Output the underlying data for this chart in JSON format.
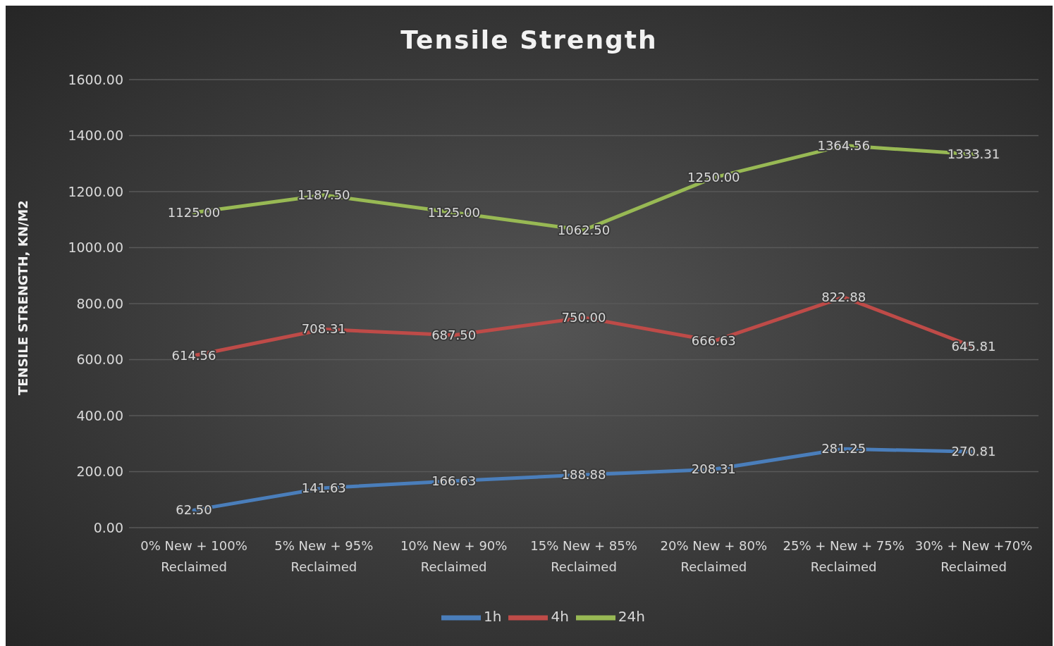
{
  "chart_data": {
    "type": "line",
    "title": "Tensile Strength",
    "ylabel": "TENSILE STRENGTH, KN/M2",
    "categories": [
      "0% New + 100% Reclaimed",
      "5% New + 95% Reclaimed",
      "10% New + 90% Reclaimed",
      "15% New + 85% Reclaimed",
      "20% New + 80% Reclaimed",
      "25% + New + 75% Reclaimed",
      "30% + New +70% Reclaimed"
    ],
    "series": [
      {
        "name": "1h",
        "color": "#4a7ebb",
        "values": [
          62.5,
          141.63,
          166.63,
          188.88,
          208.31,
          281.25,
          270.81
        ],
        "value_labels": [
          "62.50",
          "141.63",
          "166.63",
          "188.88",
          "208.31",
          "281.25",
          "270.81"
        ]
      },
      {
        "name": "4h",
        "color": "#be4b48",
        "values": [
          614.56,
          708.31,
          687.5,
          750,
          666.63,
          822.88,
          645.81
        ],
        "value_labels": [
          "614.56",
          "708.31",
          "687.50",
          "750.00",
          "666.63",
          "822.88",
          "645.81"
        ]
      },
      {
        "name": "24h",
        "color": "#98b954",
        "values": [
          1125,
          1187.5,
          1125,
          1062.5,
          1250,
          1364.56,
          1333.31
        ],
        "value_labels": [
          "1125.00",
          "1187.50",
          "1125.00",
          "1062.50",
          "1250.00",
          "1364.56",
          "1333.31"
        ]
      }
    ],
    "ylim": [
      0,
      1600
    ],
    "yticks": [
      {
        "value": 0,
        "label": "0.00"
      },
      {
        "value": 200,
        "label": "200.00"
      },
      {
        "value": 400,
        "label": "400.00"
      },
      {
        "value": 600,
        "label": "600.00"
      },
      {
        "value": 800,
        "label": "800.00"
      },
      {
        "value": 1000,
        "label": "1000.00"
      },
      {
        "value": 1200,
        "label": "1200.00"
      },
      {
        "value": 1400,
        "label": "1400.00"
      },
      {
        "value": 1600,
        "label": "1600.00"
      }
    ],
    "grid": "y",
    "legend": "bottom",
    "marker": "none",
    "line_style": "solid"
  }
}
